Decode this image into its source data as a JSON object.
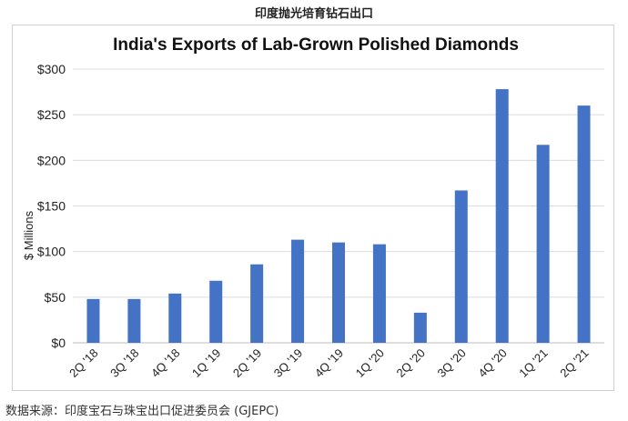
{
  "page": {
    "heading": "印度抛光培育钻石出口",
    "source_note": "数据来源：印度宝石与珠宝出口促进委员会 (GJEPC)"
  },
  "chart_data": {
    "type": "bar",
    "title": "India's Exports of Lab-Grown Polished Diamonds",
    "xlabel": "",
    "ylabel": "$ Millions",
    "categories": [
      "2Q '18",
      "3Q '18",
      "4Q '18",
      "1Q '19",
      "2Q '19",
      "3Q '19",
      "4Q '19",
      "1Q '20",
      "2Q '20",
      "3Q '20",
      "4Q '20",
      "1Q '21",
      "2Q '21"
    ],
    "values": [
      48,
      48,
      54,
      68,
      86,
      113,
      110,
      108,
      33,
      167,
      278,
      217,
      260
    ],
    "ylim": [
      0,
      300
    ],
    "yticks": [
      0,
      50,
      100,
      150,
      200,
      250,
      300
    ],
    "ytick_labels": [
      "$0",
      "$50",
      "$100",
      "$150",
      "$200",
      "$250",
      "$300"
    ],
    "bar_color": "#4472c4",
    "grid": true,
    "legend": "none"
  }
}
